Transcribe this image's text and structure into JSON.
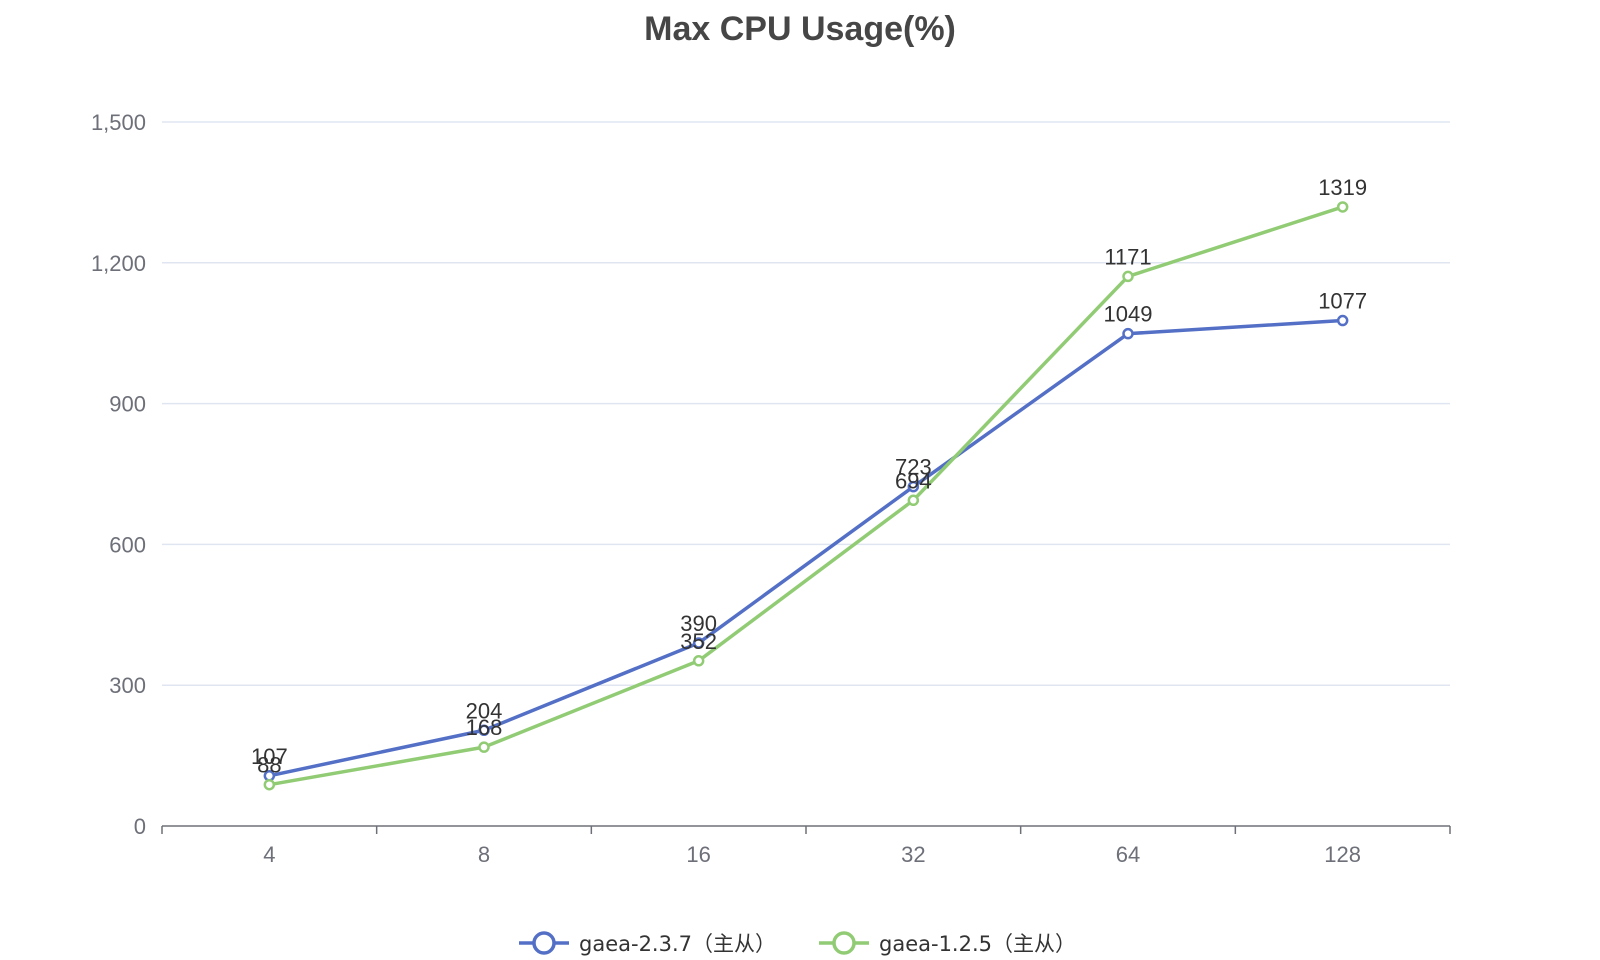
{
  "chart_data": {
    "type": "line",
    "title": "Max CPU Usage(%)",
    "xlabel": "",
    "ylabel": "",
    "categories": [
      "4",
      "8",
      "16",
      "32",
      "64",
      "128"
    ],
    "ylim": [
      0,
      1500
    ],
    "yticks": [
      0,
      300,
      600,
      900,
      1200,
      1500
    ],
    "ytick_labels": [
      "0",
      "300",
      "600",
      "900",
      "1,200",
      "1,500"
    ],
    "grid": true,
    "legend_position": "bottom",
    "series": [
      {
        "name": "gaea-2.3.7（主从）",
        "color": "#5470c6",
        "values": [
          107,
          204,
          390,
          723,
          1049,
          1077
        ],
        "labels": [
          "107",
          "204",
          "390",
          "723",
          "1049",
          "1077"
        ]
      },
      {
        "name": "gaea-1.2.5（主从）",
        "color": "#91cc75",
        "values": [
          88,
          168,
          352,
          694,
          1171,
          1319
        ],
        "labels": [
          "88",
          "168",
          "352",
          "694",
          "1171",
          "1319"
        ]
      }
    ]
  }
}
